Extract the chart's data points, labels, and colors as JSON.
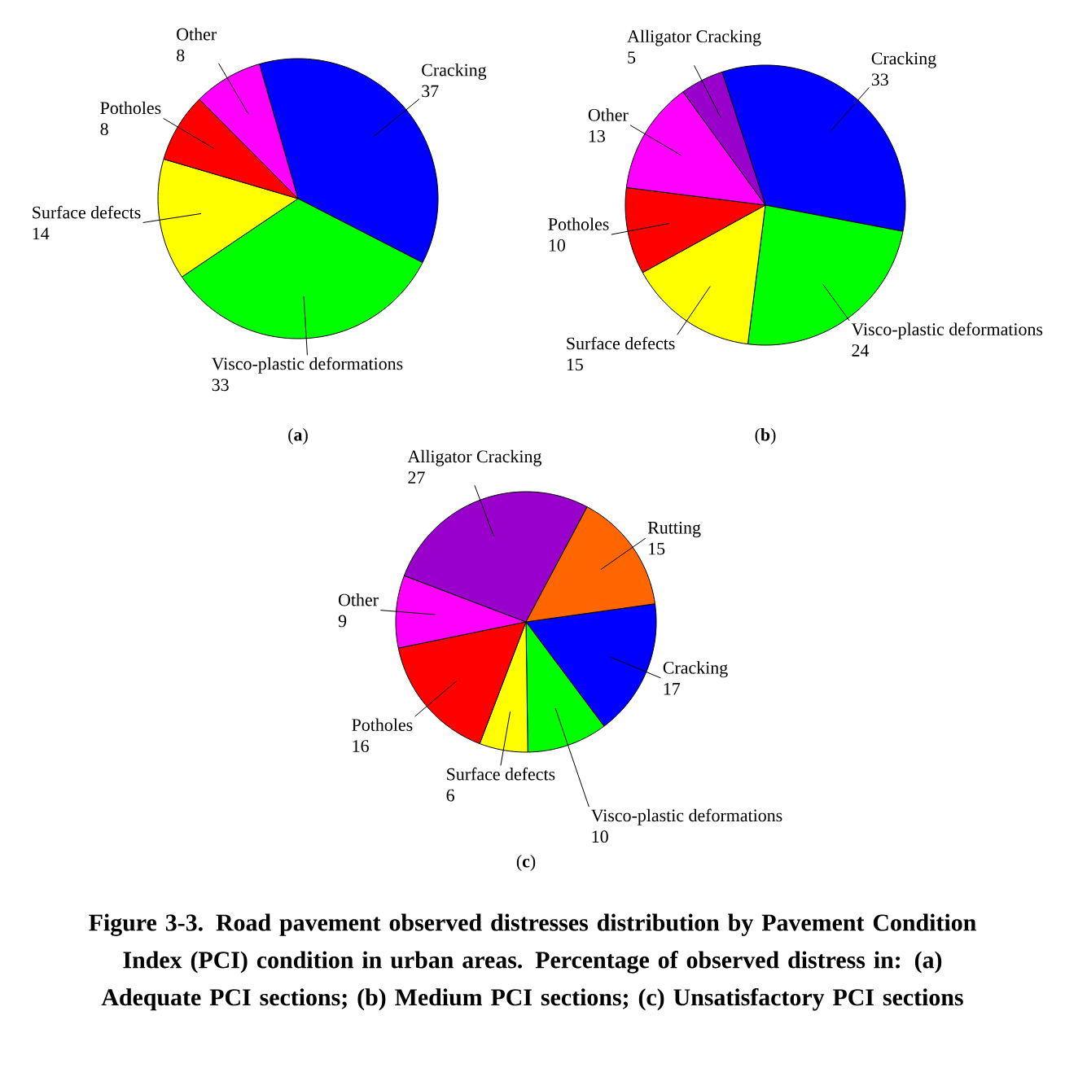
{
  "chart_data": [
    {
      "type": "pie",
      "title": "(**a**)",
      "data_labels": true,
      "categories": [
        "Cracking",
        "Visco-plastic deformations",
        "Surface defects",
        "Potholes",
        "Other"
      ],
      "values": [
        37,
        33,
        14,
        8,
        8
      ],
      "colors": [
        "#0000ff",
        "#00ff00",
        "#ffff00",
        "#ff0000",
        "#ff00ff"
      ]
    },
    {
      "type": "pie",
      "title": "(**b**)",
      "data_labels": true,
      "categories": [
        "Cracking",
        "Visco-plastic deformations",
        "Surface defects",
        "Potholes",
        "Other",
        "Alligator Cracking"
      ],
      "values": [
        33,
        24,
        15,
        10,
        13,
        5
      ],
      "colors": [
        "#0000ff",
        "#00ff00",
        "#ffff00",
        "#ff0000",
        "#ff00ff",
        "#9900cc"
      ]
    },
    {
      "type": "pie",
      "title": "(**c**)",
      "data_labels": true,
      "categories": [
        "Cracking",
        "Visco-plastic deformations",
        "Surface defects",
        "Potholes",
        "Other",
        "Alligator Cracking",
        "Rutting"
      ],
      "values": [
        17,
        10,
        6,
        16,
        9,
        27,
        15
      ],
      "colors": [
        "#0000ff",
        "#00ff00",
        "#ffff00",
        "#ff0000",
        "#ff00ff",
        "#9900cc",
        "#ff6600"
      ],
      "annotations": [
        "Figure 3-3. Road pavement observed distresses distribution by Pavement Condition Index (PCI) condition in urban areas. Percentage of observed distress in: (a) Adequate PCI sections; (b) Medium PCI sections; (c) Unsatisfactory PCI sections"
      ]
    }
  ]
}
